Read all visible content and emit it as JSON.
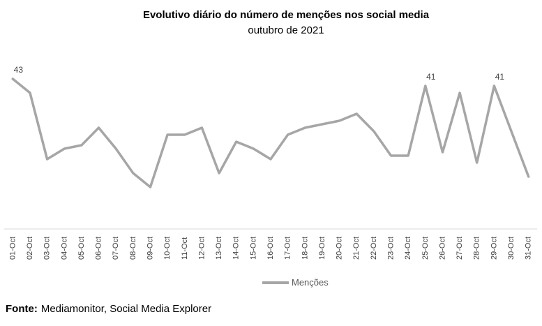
{
  "chart": {
    "title": "Evolutivo diário do número de menções nos social media",
    "subtitle": "outubro de 2021"
  },
  "chart_data": {
    "type": "line",
    "title": "Evolutivo diário do número de menções nos social media",
    "subtitle": "outubro de 2021",
    "categories": [
      "01-Oct",
      "02-Oct",
      "03-Oct",
      "04-Oct",
      "05-Oct",
      "06-Oct",
      "07-Oct",
      "08-Oct",
      "09-Oct",
      "10-Oct",
      "11-Oct",
      "12-Oct",
      "13-Oct",
      "14-Oct",
      "15-Oct",
      "16-Oct",
      "17-Oct",
      "18-Oct",
      "19-Oct",
      "20-Oct",
      "21-Oct",
      "22-Oct",
      "23-Oct",
      "24-Oct",
      "25-Oct",
      "26-Oct",
      "27-Oct",
      "28-Oct",
      "29-Oct",
      "30-Oct",
      "31-Oct"
    ],
    "series": [
      {
        "name": "Menções",
        "values": [
          43,
          39,
          20,
          23,
          24,
          29,
          23,
          16,
          12,
          27,
          27,
          29,
          16,
          25,
          23,
          20,
          27,
          29,
          30,
          31,
          33,
          28,
          21,
          21,
          41,
          22,
          39,
          19,
          41,
          28,
          15
        ]
      }
    ],
    "point_labels": [
      {
        "index": 0,
        "text": "43"
      },
      {
        "index": 24,
        "text": "41"
      },
      {
        "index": 28,
        "text": "41"
      }
    ],
    "ylim": [
      0,
      45
    ],
    "grid": false,
    "y_axis_visible": false,
    "x_tick_rotation": 90,
    "legend_position": "bottom",
    "colors": {
      "line": "#A6A6A6",
      "axis": "#D9D9D9",
      "tick_label": "#404040",
      "point_label": "#404040",
      "legend_text": "#595959",
      "title": "#000000"
    }
  },
  "legend": {
    "label": "Menções"
  },
  "footer": {
    "label": "Fonte:",
    "text": "Mediamonitor, Social Media Explorer"
  }
}
